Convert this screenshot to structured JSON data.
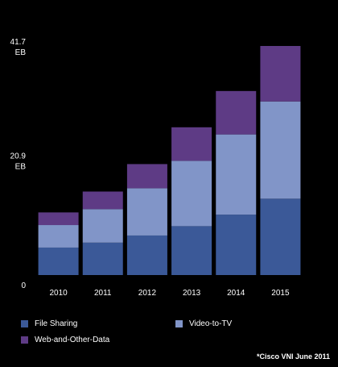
{
  "chart_data": {
    "type": "bar",
    "stacked": true,
    "categories": [
      "2010",
      "2011",
      "2012",
      "2013",
      "2014",
      "2015"
    ],
    "series": [
      {
        "name": "File Sharing",
        "color": "#3b5998",
        "values": [
          5.0,
          5.9,
          7.2,
          8.9,
          11.0,
          13.9
        ]
      },
      {
        "name": "Video-to-TV",
        "color": "#8195c8",
        "values": [
          4.1,
          6.1,
          8.6,
          11.9,
          14.6,
          17.7
        ]
      },
      {
        "name": "Web-and-Other-Data",
        "color": "#5e3b85",
        "values": [
          2.3,
          3.2,
          4.4,
          6.1,
          7.9,
          10.1
        ]
      }
    ],
    "y_tick_labels": [
      {
        "value": 41.7,
        "lines": [
          "41.7",
          "EB"
        ]
      },
      {
        "value": 20.9,
        "lines": [
          "20.9",
          "EB"
        ]
      },
      {
        "value": 0,
        "lines": [
          "0"
        ]
      }
    ],
    "ylim": [
      0,
      41.7
    ],
    "grid": false,
    "legend_position": "bottom"
  },
  "source_note": "*Cisco VNI June 2011"
}
